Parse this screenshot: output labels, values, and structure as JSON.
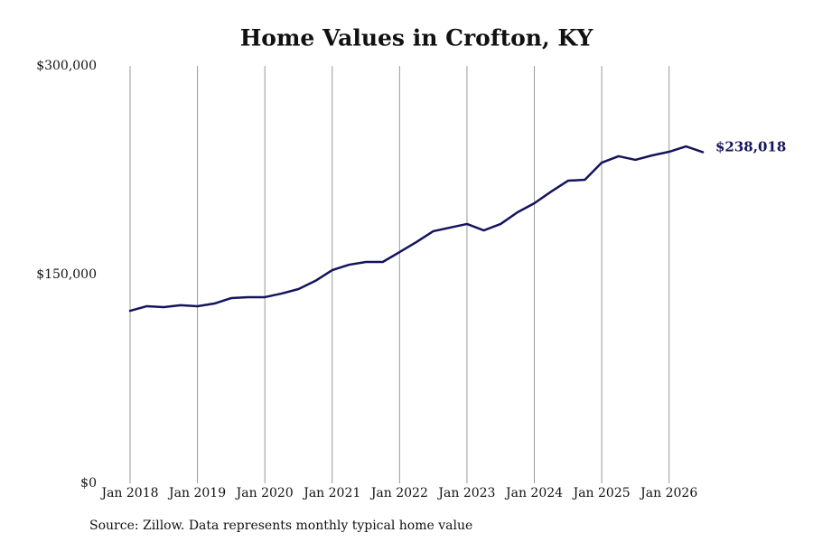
{
  "chart_data": {
    "type": "line",
    "title": "Home Values in Crofton, KY",
    "source": "Source: Zillow. Data represents monthly typical home value",
    "x": [
      "Jan 2018",
      "Apr 2018",
      "Jul 2018",
      "Oct 2018",
      "Jan 2019",
      "Apr 2019",
      "Jul 2019",
      "Oct 2019",
      "Jan 2020",
      "Apr 2020",
      "Jul 2020",
      "Oct 2020",
      "Jan 2021",
      "Apr 2021",
      "Jul 2021",
      "Oct 2021",
      "Jan 2022",
      "Apr 2022",
      "Jul 2022",
      "Oct 2022",
      "Jan 2023",
      "Apr 2023",
      "Jul 2023",
      "Oct 2023",
      "Jan 2024",
      "Apr 2024",
      "Jul 2024",
      "Oct 2024",
      "Jan 2025",
      "Apr 2025",
      "Jul 2025",
      "Oct 2025",
      "Jan 2026",
      "Apr 2026",
      "Jul 2026"
    ],
    "series": [
      {
        "name": "Home value",
        "color": "#14145e",
        "values": [
          124000,
          127300,
          126600,
          128000,
          127300,
          129200,
          133100,
          133800,
          133800,
          136400,
          139600,
          145500,
          153200,
          157100,
          159100,
          159100,
          166200,
          173400,
          181200,
          183800,
          186400,
          181800,
          186400,
          194800,
          201300,
          209700,
          217500,
          218200,
          230500,
          235100,
          232500,
          235700,
          238300,
          242200,
          238018
        ],
        "value_labels": [
          null,
          null,
          null,
          null,
          null,
          null,
          null,
          null,
          null,
          null,
          null,
          null,
          null,
          null,
          null,
          null,
          null,
          null,
          null,
          null,
          null,
          null,
          null,
          null,
          null,
          null,
          null,
          null,
          null,
          null,
          null,
          null,
          null,
          null,
          "$238,018"
        ]
      }
    ],
    "xlim": [
      "Jan 2018",
      "Jul 2026"
    ],
    "xticks": [
      "Jan 2018",
      "Jan 2019",
      "Jan 2020",
      "Jan 2021",
      "Jan 2022",
      "Jan 2023",
      "Jan 2024",
      "Jan 2025",
      "Jan 2026"
    ],
    "ylim": [
      0,
      300000
    ],
    "yticks": [
      {
        "value": 0,
        "label": "$0"
      },
      {
        "value": 150000,
        "label": "$150,000"
      },
      {
        "value": 300000,
        "label": "$300,000"
      }
    ],
    "grid": "x"
  }
}
